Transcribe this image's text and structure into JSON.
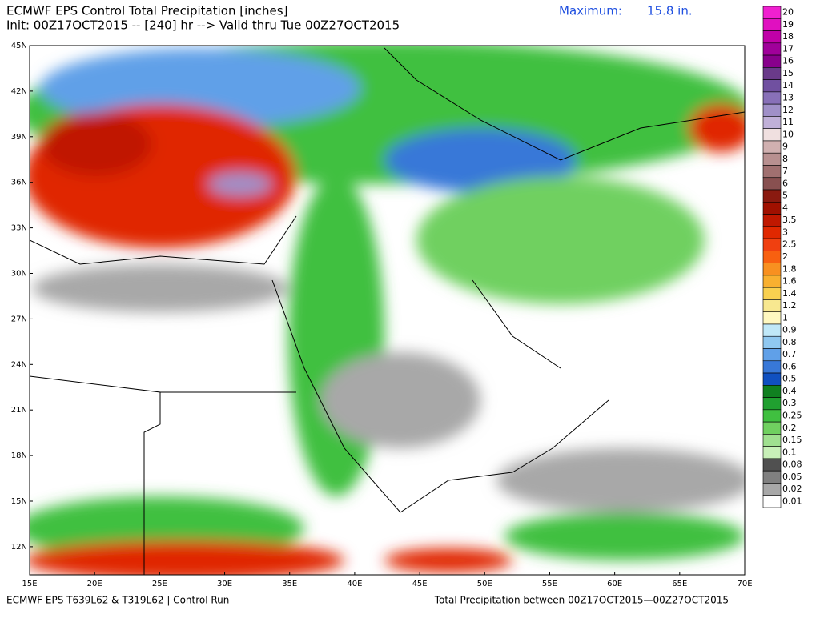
{
  "header": {
    "title": "ECMWF EPS Control Total Precipitation [inches]",
    "subtitle": "Init: 00Z17OCT2015 -- [240] hr --> Valid thru Tue 00Z27OCT2015",
    "maximum_label": "Maximum:",
    "maximum_value": "15.8 in."
  },
  "map": {
    "lat_labels": [
      "45N",
      "42N",
      "39N",
      "36N",
      "33N",
      "30N",
      "27N",
      "24N",
      "21N",
      "18N",
      "15N",
      "12N"
    ],
    "lon_labels": [
      "15E",
      "20E",
      "25E",
      "30E",
      "35E",
      "40E",
      "45E",
      "50E",
      "55E",
      "60E",
      "65E",
      "70E"
    ]
  },
  "colorbar": {
    "labels": [
      "20",
      "19",
      "18",
      "17",
      "16",
      "15",
      "14",
      "13",
      "12",
      "11",
      "10",
      "9",
      "8",
      "7",
      "6",
      "5",
      "4",
      "3.5",
      "3",
      "2.5",
      "2",
      "1.8",
      "1.6",
      "1.4",
      "1.2",
      "1",
      "0.9",
      "0.8",
      "0.7",
      "0.6",
      "0.5",
      "0.4",
      "0.3",
      "0.25",
      "0.2",
      "0.15",
      "0.1",
      "0.08",
      "0.05",
      "0.02",
      "0.01"
    ],
    "colors": [
      "#f020d0",
      "#e010c0",
      "#c000a8",
      "#a0009a",
      "#88008c",
      "#6a3a8a",
      "#7050a0",
      "#8870b8",
      "#a090c8",
      "#c0b0d8",
      "#f0e0e0",
      "#d0b0b0",
      "#b89090",
      "#a07070",
      "#885050",
      "#8a1a10",
      "#a01000",
      "#c01800",
      "#e02800",
      "#f04010",
      "#f86010",
      "#f89020",
      "#f8b030",
      "#f8d050",
      "#f8e890",
      "#fff8c0",
      "#c0e8f8",
      "#90c8f0",
      "#60a0e8",
      "#3878d8",
      "#1050c0",
      "#108020",
      "#20a030",
      "#40c040",
      "#70d060",
      "#a0e090",
      "#c8f0b8",
      "#505050",
      "#808080",
      "#a8a8a8",
      "#ffffff"
    ]
  },
  "footer": {
    "left": "ECMWF EPS T639L62 & T319L62 | Control Run",
    "right": "Total Precipitation between 00Z17OCT2015—00Z27OCT2015"
  }
}
